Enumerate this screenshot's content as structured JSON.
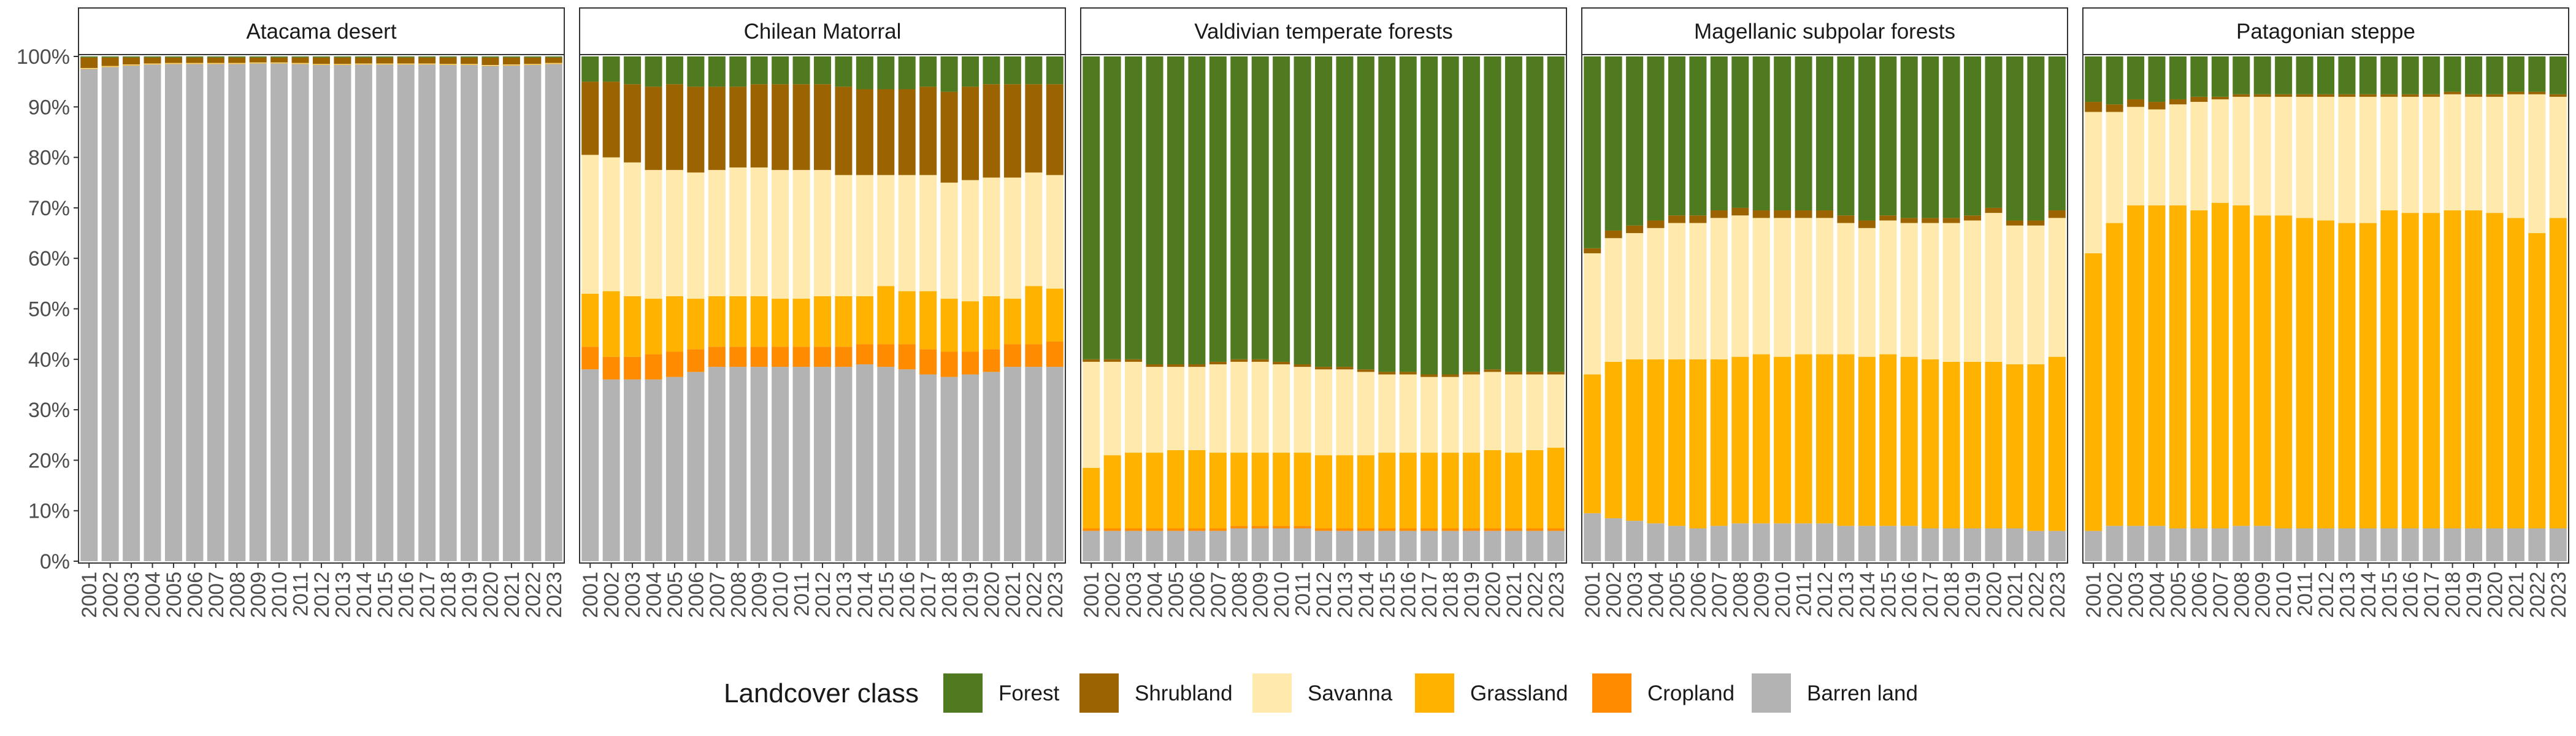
{
  "chart_data": {
    "type": "bar",
    "stacked": true,
    "orientation": "vertical",
    "ylim": [
      0,
      1
    ],
    "y_tick_labels": [
      "0%",
      "10%",
      "20%",
      "30%",
      "40%",
      "50%",
      "60%",
      "70%",
      "80%",
      "90%",
      "100%"
    ],
    "grid": false,
    "legend_position": "bottom",
    "legend_title": "Landcover class",
    "x": [
      "2001",
      "2002",
      "2003",
      "2004",
      "2005",
      "2006",
      "2007",
      "2008",
      "2009",
      "2010",
      "2011",
      "2012",
      "2013",
      "2014",
      "2015",
      "2016",
      "2017",
      "2018",
      "2019",
      "2020",
      "2021",
      "2022",
      "2023"
    ],
    "classes": [
      {
        "name": "Barren land",
        "color": "#b3b3b3"
      },
      {
        "name": "Cropland",
        "color": "#ff8c00"
      },
      {
        "name": "Grassland",
        "color": "#ffb300"
      },
      {
        "name": "Savanna",
        "color": "#ffe9ad"
      },
      {
        "name": "Shrubland",
        "color": "#9c6400"
      },
      {
        "name": "Forest",
        "color": "#4f7a1f"
      }
    ],
    "legend_order": [
      "Forest",
      "Shrubland",
      "Savanna",
      "Grassland",
      "Cropland",
      "Barren land"
    ],
    "panels": [
      {
        "title": "Atacama desert",
        "series": {
          "Barren land": [
            0.975,
            0.979,
            0.982,
            0.984,
            0.985,
            0.985,
            0.985,
            0.985,
            0.986,
            0.986,
            0.985,
            0.983,
            0.983,
            0.984,
            0.984,
            0.984,
            0.984,
            0.983,
            0.983,
            0.981,
            0.982,
            0.983,
            0.985
          ],
          "Cropland": [
            0,
            0,
            0,
            0,
            0,
            0,
            0,
            0,
            0,
            0,
            0,
            0,
            0,
            0,
            0,
            0,
            0,
            0,
            0,
            0,
            0,
            0,
            0
          ],
          "Grassland": [
            0.001,
            0.001,
            0.001,
            0.001,
            0.001,
            0.001,
            0.001,
            0.001,
            0.001,
            0.001,
            0.001,
            0.001,
            0.001,
            0.001,
            0.001,
            0.001,
            0.001,
            0.001,
            0.001,
            0.001,
            0.001,
            0.001,
            0.001
          ],
          "Savanna": [
            0.001,
            0.001,
            0.001,
            0.001,
            0.001,
            0.001,
            0.001,
            0.001,
            0.001,
            0.001,
            0.001,
            0.001,
            0.001,
            0.001,
            0.001,
            0.001,
            0.001,
            0.001,
            0.001,
            0.001,
            0.001,
            0.001,
            0.001
          ],
          "Shrubland": [
            0.021,
            0.017,
            0.014,
            0.012,
            0.011,
            0.011,
            0.011,
            0.011,
            0.01,
            0.01,
            0.011,
            0.013,
            0.013,
            0.012,
            0.012,
            0.012,
            0.012,
            0.013,
            0.013,
            0.015,
            0.014,
            0.013,
            0.011
          ],
          "Forest": [
            0.002,
            0.002,
            0.002,
            0.002,
            0.002,
            0.002,
            0.002,
            0.002,
            0.002,
            0.002,
            0.002,
            0.002,
            0.002,
            0.002,
            0.002,
            0.002,
            0.002,
            0.002,
            0.002,
            0.002,
            0.002,
            0.002,
            0.002
          ]
        }
      },
      {
        "title": "Chilean Matorral",
        "series": {
          "Barren land": [
            0.38,
            0.36,
            0.36,
            0.36,
            0.365,
            0.375,
            0.385,
            0.385,
            0.385,
            0.385,
            0.385,
            0.385,
            0.385,
            0.39,
            0.385,
            0.38,
            0.37,
            0.365,
            0.37,
            0.375,
            0.385,
            0.385,
            0.385
          ],
          "Cropland": [
            0.045,
            0.045,
            0.045,
            0.05,
            0.05,
            0.045,
            0.04,
            0.04,
            0.04,
            0.04,
            0.04,
            0.04,
            0.04,
            0.04,
            0.045,
            0.05,
            0.05,
            0.05,
            0.045,
            0.045,
            0.045,
            0.045,
            0.05
          ],
          "Grassland": [
            0.105,
            0.13,
            0.12,
            0.11,
            0.11,
            0.1,
            0.1,
            0.1,
            0.1,
            0.095,
            0.095,
            0.1,
            0.1,
            0.095,
            0.115,
            0.105,
            0.115,
            0.105,
            0.1,
            0.105,
            0.09,
            0.115,
            0.105
          ],
          "Savanna": [
            0.275,
            0.265,
            0.265,
            0.255,
            0.25,
            0.25,
            0.25,
            0.255,
            0.255,
            0.255,
            0.255,
            0.25,
            0.24,
            0.24,
            0.22,
            0.23,
            0.23,
            0.23,
            0.24,
            0.235,
            0.24,
            0.225,
            0.225
          ],
          "Shrubland": [
            0.145,
            0.15,
            0.155,
            0.165,
            0.17,
            0.17,
            0.165,
            0.16,
            0.165,
            0.17,
            0.17,
            0.17,
            0.175,
            0.17,
            0.17,
            0.17,
            0.175,
            0.18,
            0.185,
            0.185,
            0.185,
            0.175,
            0.18
          ],
          "Forest": [
            0.05,
            0.05,
            0.055,
            0.06,
            0.055,
            0.06,
            0.06,
            0.06,
            0.055,
            0.055,
            0.055,
            0.055,
            0.06,
            0.065,
            0.065,
            0.065,
            0.06,
            0.07,
            0.06,
            0.055,
            0.055,
            0.055,
            0.055
          ]
        }
      },
      {
        "title": "Valdivian temperate forests",
        "series": {
          "Barren land": [
            0.06,
            0.06,
            0.06,
            0.06,
            0.06,
            0.06,
            0.06,
            0.065,
            0.065,
            0.065,
            0.065,
            0.06,
            0.06,
            0.06,
            0.06,
            0.06,
            0.06,
            0.06,
            0.06,
            0.06,
            0.06,
            0.06,
            0.06
          ],
          "Cropland": [
            0.005,
            0.005,
            0.005,
            0.005,
            0.005,
            0.005,
            0.005,
            0.005,
            0.005,
            0.005,
            0.005,
            0.005,
            0.005,
            0.005,
            0.005,
            0.005,
            0.005,
            0.005,
            0.005,
            0.005,
            0.005,
            0.005,
            0.005
          ],
          "Grassland": [
            0.12,
            0.145,
            0.15,
            0.15,
            0.155,
            0.155,
            0.15,
            0.145,
            0.145,
            0.145,
            0.145,
            0.145,
            0.145,
            0.145,
            0.15,
            0.15,
            0.15,
            0.15,
            0.15,
            0.155,
            0.15,
            0.155,
            0.16
          ],
          "Savanna": [
            0.21,
            0.185,
            0.18,
            0.17,
            0.165,
            0.165,
            0.175,
            0.18,
            0.18,
            0.175,
            0.17,
            0.17,
            0.17,
            0.165,
            0.155,
            0.155,
            0.15,
            0.15,
            0.155,
            0.155,
            0.155,
            0.15,
            0.145
          ],
          "Shrubland": [
            0.005,
            0.005,
            0.005,
            0.005,
            0.005,
            0.005,
            0.005,
            0.005,
            0.005,
            0.005,
            0.005,
            0.005,
            0.005,
            0.005,
            0.005,
            0.005,
            0.005,
            0.005,
            0.005,
            0.005,
            0.005,
            0.005,
            0.005
          ],
          "Forest": [
            0.6,
            0.6,
            0.6,
            0.61,
            0.61,
            0.61,
            0.605,
            0.6,
            0.6,
            0.605,
            0.61,
            0.615,
            0.615,
            0.62,
            0.625,
            0.625,
            0.63,
            0.63,
            0.625,
            0.62,
            0.625,
            0.625,
            0.625
          ]
        }
      },
      {
        "title": "Magellanic subpolar forests",
        "series": {
          "Barren land": [
            0.095,
            0.085,
            0.08,
            0.075,
            0.07,
            0.065,
            0.07,
            0.075,
            0.075,
            0.075,
            0.075,
            0.075,
            0.07,
            0.07,
            0.07,
            0.07,
            0.065,
            0.065,
            0.065,
            0.065,
            0.065,
            0.06,
            0.06
          ],
          "Cropland": [
            0,
            0,
            0,
            0,
            0,
            0,
            0,
            0,
            0,
            0,
            0,
            0,
            0,
            0,
            0,
            0,
            0,
            0,
            0,
            0,
            0,
            0,
            0
          ],
          "Grassland": [
            0.275,
            0.31,
            0.32,
            0.325,
            0.33,
            0.335,
            0.33,
            0.33,
            0.335,
            0.33,
            0.335,
            0.335,
            0.34,
            0.335,
            0.34,
            0.335,
            0.335,
            0.33,
            0.33,
            0.33,
            0.325,
            0.33,
            0.345
          ],
          "Savanna": [
            0.24,
            0.245,
            0.25,
            0.26,
            0.27,
            0.27,
            0.28,
            0.28,
            0.27,
            0.275,
            0.27,
            0.27,
            0.26,
            0.255,
            0.265,
            0.265,
            0.27,
            0.275,
            0.28,
            0.295,
            0.275,
            0.275,
            0.275
          ],
          "Shrubland": [
            0.01,
            0.015,
            0.015,
            0.015,
            0.015,
            0.015,
            0.015,
            0.015,
            0.015,
            0.015,
            0.015,
            0.015,
            0.015,
            0.015,
            0.01,
            0.01,
            0.01,
            0.01,
            0.01,
            0.01,
            0.01,
            0.01,
            0.015
          ],
          "Forest": [
            0.38,
            0.345,
            0.335,
            0.325,
            0.315,
            0.315,
            0.305,
            0.3,
            0.305,
            0.305,
            0.305,
            0.305,
            0.315,
            0.325,
            0.315,
            0.32,
            0.32,
            0.32,
            0.315,
            0.3,
            0.325,
            0.325,
            0.305
          ]
        }
      },
      {
        "title": "Patagonian steppe",
        "series": {
          "Barren land": [
            0.06,
            0.07,
            0.07,
            0.07,
            0.065,
            0.065,
            0.065,
            0.07,
            0.07,
            0.065,
            0.065,
            0.065,
            0.065,
            0.065,
            0.065,
            0.065,
            0.065,
            0.065,
            0.065,
            0.065,
            0.065,
            0.065,
            0.065
          ],
          "Cropland": [
            0,
            0,
            0,
            0,
            0,
            0,
            0,
            0,
            0,
            0,
            0,
            0,
            0,
            0,
            0,
            0,
            0,
            0,
            0,
            0,
            0,
            0,
            0
          ],
          "Grassland": [
            0.55,
            0.6,
            0.635,
            0.635,
            0.64,
            0.63,
            0.645,
            0.635,
            0.615,
            0.62,
            0.615,
            0.61,
            0.605,
            0.605,
            0.63,
            0.625,
            0.625,
            0.63,
            0.63,
            0.625,
            0.615,
            0.585,
            0.615
          ],
          "Savanna": [
            0.28,
            0.22,
            0.195,
            0.19,
            0.2,
            0.215,
            0.205,
            0.215,
            0.235,
            0.235,
            0.24,
            0.245,
            0.25,
            0.25,
            0.225,
            0.23,
            0.23,
            0.23,
            0.225,
            0.23,
            0.245,
            0.275,
            0.24
          ],
          "Shrubland": [
            0.02,
            0.015,
            0.015,
            0.015,
            0.01,
            0.01,
            0.005,
            0.005,
            0.005,
            0.005,
            0.005,
            0.005,
            0.005,
            0.005,
            0.005,
            0.005,
            0.005,
            0.005,
            0.005,
            0.005,
            0.005,
            0.005,
            0.005
          ],
          "Forest": [
            0.09,
            0.095,
            0.085,
            0.09,
            0.085,
            0.08,
            0.08,
            0.075,
            0.075,
            0.075,
            0.075,
            0.075,
            0.075,
            0.075,
            0.075,
            0.075,
            0.075,
            0.07,
            0.075,
            0.075,
            0.07,
            0.07,
            0.075
          ]
        }
      }
    ]
  }
}
